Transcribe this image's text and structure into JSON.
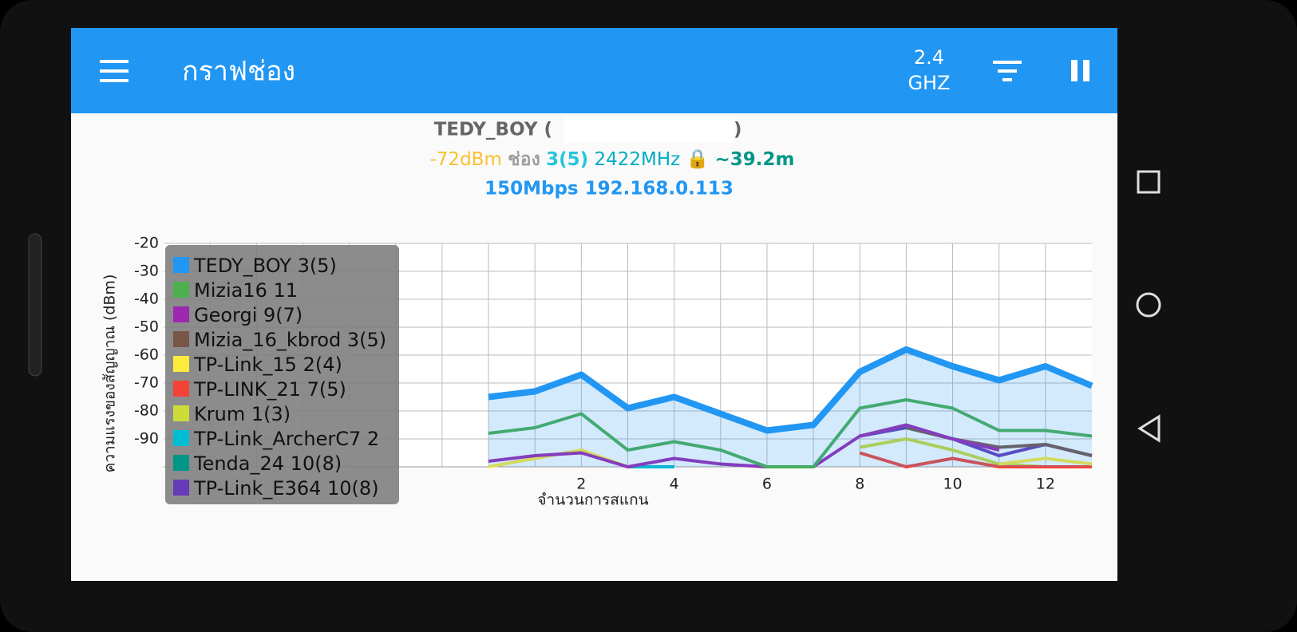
{
  "app_bar": {
    "title": "กราฟช่อง",
    "band_top": "2.4",
    "band_bottom": "GHZ"
  },
  "info": {
    "ssid_open": "TEDY_BOY (",
    "ssid_close": ")",
    "signal": "-72dBm",
    "channel_label": "ช่อง",
    "channel": "3(5)",
    "frequency": "2422MHz",
    "distance": "~39.2m",
    "link": "150Mbps 192.168.0.113"
  },
  "chart_data": {
    "type": "line",
    "ylabel": "ความแรงของสัญญาณ (dBm)",
    "xlabel": "จำนวนการสแกน",
    "xlim": [
      -7,
      13
    ],
    "xticks": [
      2,
      4,
      6,
      8,
      10,
      12
    ],
    "xgrid": [
      -6,
      -5,
      -4,
      -3,
      -2,
      -1,
      0,
      1,
      2,
      3,
      4,
      5,
      6,
      7,
      8,
      9,
      10,
      11,
      12
    ],
    "ylim": [
      -100,
      -20
    ],
    "yticks": [
      -20,
      -30,
      -40,
      -50,
      -60,
      -70,
      -80,
      -90
    ],
    "grid": true,
    "x": [
      0,
      1,
      2,
      3,
      4,
      5,
      6,
      7,
      8,
      9,
      10,
      11,
      12,
      13
    ],
    "series": [
      {
        "name": "TEDY_BOY 3(5)",
        "color": "#2196f3",
        "values": [
          -75,
          -73,
          -67,
          -79,
          -75,
          -81,
          -87,
          -85,
          -66,
          -58,
          -64,
          -69,
          -64,
          -71
        ]
      },
      {
        "name": "Mizia16 11",
        "color": "#4caf50",
        "values": [
          -88,
          -86,
          -81,
          -94,
          -91,
          -94,
          -100,
          -100,
          -79,
          -76,
          -79,
          -87,
          -87,
          -89
        ]
      },
      {
        "name": "Georgi 9(7)",
        "color": "#9c27b0",
        "values": [
          -98,
          -96,
          -95,
          -100,
          -97,
          -99,
          -100,
          -100,
          -89,
          -85,
          -90,
          -94,
          null,
          null
        ]
      },
      {
        "name": "Mizia_16_kbrod 3(5)",
        "color": "#795548",
        "values": [
          null,
          null,
          null,
          null,
          null,
          null,
          null,
          null,
          null,
          -86,
          -90,
          -93,
          -92,
          -96
        ]
      },
      {
        "name": "TP-Link_15 2(4)",
        "color": "#ffeb3b",
        "values": [
          -100,
          -97,
          -94,
          -100,
          null,
          null,
          null,
          null,
          null,
          null,
          null,
          -99,
          -97,
          -99
        ]
      },
      {
        "name": "TP-LINK_21 7(5)",
        "color": "#f44336",
        "values": [
          null,
          null,
          null,
          null,
          null,
          null,
          null,
          null,
          -95,
          -100,
          -97,
          -100,
          -100,
          -100
        ]
      },
      {
        "name": "Krum 1(3)",
        "color": "#cddc39",
        "values": [
          null,
          null,
          null,
          null,
          null,
          null,
          null,
          null,
          -93,
          -90,
          -94,
          -99,
          -100,
          null
        ]
      },
      {
        "name": "TP-Link_ArcherC7 2",
        "color": "#00bcd4",
        "values": [
          null,
          null,
          null,
          -100,
          -100,
          null,
          null,
          null,
          null,
          null,
          null,
          null,
          null,
          null
        ]
      },
      {
        "name": "Tenda_24 10(8)",
        "color": "#009688",
        "values": [
          null,
          null,
          null,
          -100,
          -100,
          null,
          null,
          null,
          null,
          null,
          null,
          null,
          null,
          null
        ]
      },
      {
        "name": "TP-Link_E364 10(8)",
        "color": "#673ab7",
        "values": [
          null,
          null,
          null,
          null,
          null,
          null,
          null,
          null,
          -89,
          -86,
          -90,
          -96,
          -92,
          -96
        ]
      }
    ]
  }
}
